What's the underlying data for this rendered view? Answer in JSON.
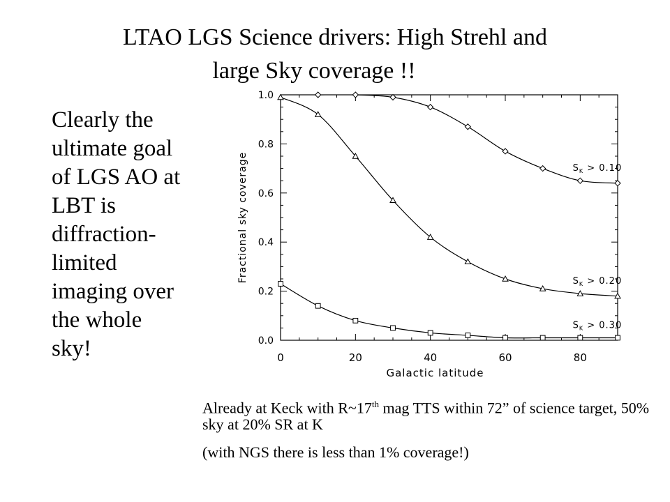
{
  "slide": {
    "title_lines": [
      "LTAO LGS Science drivers: High Strehl and",
      "large Sky coverage !!"
    ],
    "body_lines": [
      "Clearly the",
      "ultimate goal",
      "of LGS AO at",
      "LBT is",
      "diffraction-",
      "limited",
      "imaging over",
      "the whole",
      "sky!"
    ],
    "caption": {
      "pre": "Already at Keck with R~17",
      "sup": "th",
      "post": " mag TTS within 72” of science target, 50% sky at 20% SR at K",
      "note": "(with NGS there is less than 1% coverage!)"
    }
  },
  "chart_data": {
    "type": "line",
    "xlabel": "Galactic latitude",
    "ylabel": "Fractional sky coverage",
    "xlim": [
      0,
      90
    ],
    "ylim": [
      0,
      1.0
    ],
    "xticks": [
      0,
      20,
      40,
      60,
      80
    ],
    "xtick_labels": [
      "0",
      "20",
      "40",
      "60",
      "80"
    ],
    "yticks": [
      0,
      0.2,
      0.4,
      0.6,
      0.8,
      1.0
    ],
    "ytick_labels": [
      "0.0",
      "0.2",
      "0.4",
      "0.6",
      "0.8",
      "1.0"
    ],
    "grid": false,
    "series": [
      {
        "name": "S_K > 0.10",
        "label_main": "S",
        "label_sub": "K",
        "label_rest": " > 0.10",
        "marker": "diamond",
        "color": "#000000",
        "x": [
          10,
          20,
          30,
          40,
          50,
          60,
          70,
          80,
          90
        ],
        "y": [
          1.0,
          1.0,
          0.99,
          0.95,
          0.87,
          0.77,
          0.7,
          0.65,
          0.64
        ]
      },
      {
        "name": "S_K > 0.20",
        "label_main": "S",
        "label_sub": "K",
        "label_rest": " > 0.20",
        "marker": "triangle",
        "color": "#000000",
        "x": [
          0,
          10,
          20,
          30,
          40,
          50,
          60,
          70,
          80,
          90
        ],
        "y": [
          0.99,
          0.92,
          0.75,
          0.57,
          0.42,
          0.32,
          0.25,
          0.21,
          0.19,
          0.18
        ]
      },
      {
        "name": "S_K > 0.30",
        "label_main": "S",
        "label_sub": "K",
        "label_rest": " > 0.30",
        "marker": "square",
        "color": "#000000",
        "x": [
          0,
          10,
          20,
          30,
          40,
          50,
          60,
          70,
          80,
          90
        ],
        "y": [
          0.23,
          0.14,
          0.08,
          0.05,
          0.03,
          0.02,
          0.01,
          0.01,
          0.01,
          0.01
        ]
      }
    ]
  }
}
